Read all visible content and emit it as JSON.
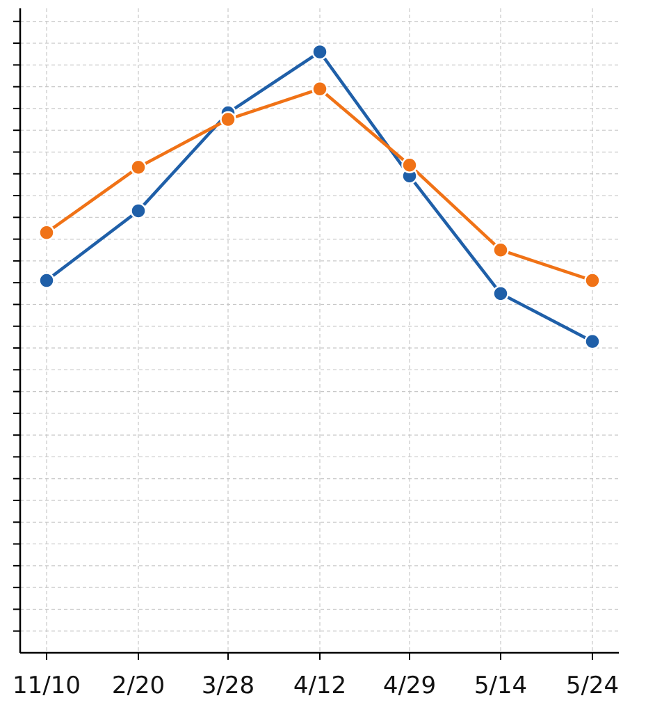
{
  "chart_data": {
    "type": "line",
    "title": "",
    "xlabel": "",
    "ylabel": "",
    "categories": [
      "11/10",
      "2/20",
      "3/28",
      "4/12",
      "4/29",
      "5/14",
      "5/24"
    ],
    "series": [
      {
        "color": "#1f5fa8",
        "values": [
          6.1,
          9.3,
          13.8,
          16.6,
          10.9,
          5.5,
          3.3
        ]
      },
      {
        "color": "#f07216",
        "values": [
          8.3,
          11.3,
          13.5,
          14.9,
          11.4,
          7.5,
          6.1
        ]
      }
    ],
    "ylim": [
      -11,
      18.6
    ],
    "y_ticks": [
      -10,
      -9,
      -8,
      -7,
      -6,
      -5,
      -4,
      -3,
      -2,
      -1,
      0,
      1,
      2,
      3,
      4,
      5,
      6,
      7,
      8,
      9,
      10,
      11,
      12,
      13,
      14,
      15,
      16,
      17,
      18
    ],
    "y_tick_labels_shown": false,
    "grid": true,
    "legend": "none"
  }
}
